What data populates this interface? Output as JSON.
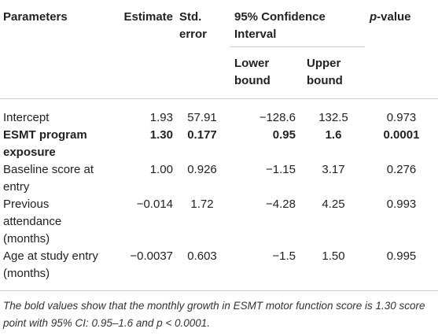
{
  "columns": {
    "parameters": "Parameters",
    "estimate": "Estimate",
    "std_error_line1": "Std.",
    "std_error_line2": "error",
    "ci_line1": "95% Confidence",
    "ci_line2": "Interval",
    "lower_line1": "Lower",
    "lower_line2": "bound",
    "upper_line1": "Upper",
    "upper_line2": "bound",
    "pvalue_italic": "p",
    "pvalue_rest": "-value"
  },
  "rows": [
    {
      "param_line1": "Intercept",
      "param_line2": "",
      "param_line3": "",
      "estimate": "1.93",
      "std_error": "57.91",
      "lower": "−128.6",
      "upper": "132.5",
      "pvalue": "0.973"
    },
    {
      "param_line1": "ESMT program",
      "param_line2": "exposure",
      "param_line3": "",
      "estimate": "1.30",
      "std_error": "0.177",
      "lower": "0.95",
      "upper": "1.6",
      "pvalue": "0.0001"
    },
    {
      "param_line1": "Baseline score at",
      "param_line2": "entry",
      "param_line3": "",
      "estimate": "1.00",
      "std_error": "0.926",
      "lower": "−1.15",
      "upper": "3.17",
      "pvalue": "0.276"
    },
    {
      "param_line1": "Previous",
      "param_line2": "attendance",
      "param_line3": "(months)",
      "estimate": "−0.014",
      "std_error": "1.72",
      "lower": "−4.28",
      "upper": "4.25",
      "pvalue": "0.993"
    },
    {
      "param_line1": "Age at study entry",
      "param_line2": "(months)",
      "param_line3": "",
      "estimate": "−0.0037",
      "std_error": "0.603",
      "lower": "−1.5",
      "upper": "1.50",
      "pvalue": "0.995"
    }
  ],
  "footnote": "The bold values show that the monthly growth in ESMT motor function score is 1.30 score point with 95% CI: 0.95–1.6 and p < 0.0001."
}
